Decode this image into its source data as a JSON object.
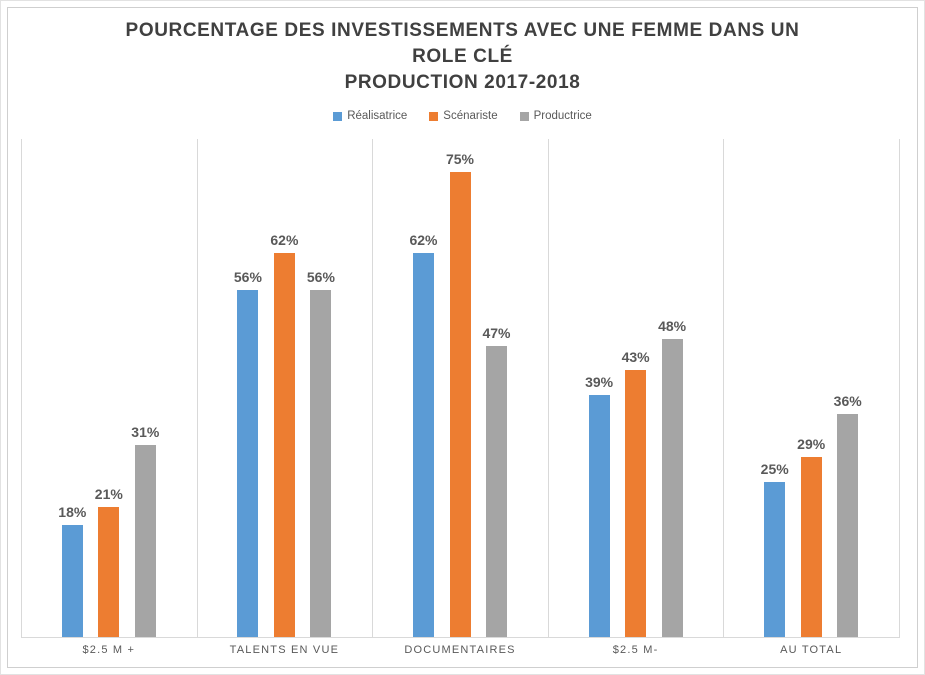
{
  "chart": {
    "title_lines": [
      "POURCENTAGE DES INVESTISSEMENTS AVEC UNE FEMME DANS UN",
      "ROLE CLÉ",
      "PRODUCTION 2017-2018"
    ]
  },
  "chart_data": {
    "type": "bar",
    "title": "POURCENTAGE DES INVESTISSEMENTS AVEC UNE FEMME DANS UN ROLE CLÉ PRODUCTION 2017-2018",
    "categories": [
      "$2.5 M +",
      "TALENTS EN VUE",
      "DOCUMENTAIRES",
      "$2.5 M-",
      "AU TOTAL"
    ],
    "series": [
      {
        "name": "Réalisatrice",
        "color": "#5B9BD5",
        "values": [
          18,
          56,
          62,
          39,
          25
        ]
      },
      {
        "name": "Scénariste",
        "color": "#ED7D31",
        "values": [
          21,
          62,
          75,
          43,
          29
        ]
      },
      {
        "name": "Productrice",
        "color": "#A5A5A5",
        "values": [
          31,
          56,
          47,
          48,
          36
        ]
      }
    ],
    "value_suffix": "%",
    "data_labels": true,
    "xlabel": "",
    "ylabel": "",
    "ylim": [
      0,
      80
    ],
    "y_axis_visible": false,
    "grid": "vertical-category-separators",
    "legend_position": "top",
    "colors": {
      "title_text": "#404040",
      "label_text": "#595959",
      "gridline": "#d9d9d9",
      "frame_border": "#cfcfcf"
    }
  }
}
